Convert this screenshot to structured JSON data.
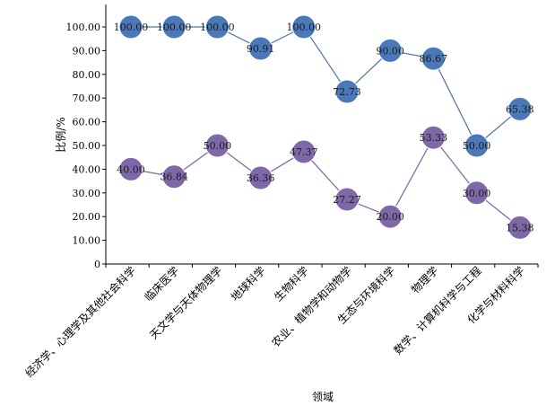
{
  "chart_data": {
    "type": "line",
    "xlabel": "领域",
    "ylabel": "比例/%",
    "ylim": [
      0,
      100
    ],
    "ytick_step": 10,
    "grid": false,
    "categories": [
      "经济学、心理学及其他社会科学",
      "临床医学",
      "天文学与天体物理学",
      "地球科学",
      "生物科学",
      "农业、植物学和动物学",
      "生态与环境科学",
      "物理学",
      "数学、计算机科学与工程",
      "化学与材料科学"
    ],
    "series": [
      {
        "color": "#4a78b8",
        "line_color": "#4f73a8",
        "values": [
          100.0,
          100.0,
          100.0,
          90.91,
          100.0,
          72.73,
          90.0,
          86.67,
          50.0,
          65.38
        ],
        "labels": [
          "100.00",
          "100.00",
          "100.00",
          "90.91",
          "100.00",
          "72.73",
          "90.00",
          "86.67",
          "50.00",
          "65.38"
        ]
      },
      {
        "color": "#7f68a8",
        "line_color": "#7a66a0",
        "values": [
          40.0,
          36.84,
          50.0,
          36.36,
          47.37,
          27.27,
          20.0,
          53.33,
          30.0,
          15.38
        ],
        "labels": [
          "40.00",
          "36.84",
          "50.00",
          "36.36",
          "47.37",
          "27.27",
          "20.00",
          "53.33",
          "30.00",
          "15.38"
        ]
      }
    ]
  }
}
